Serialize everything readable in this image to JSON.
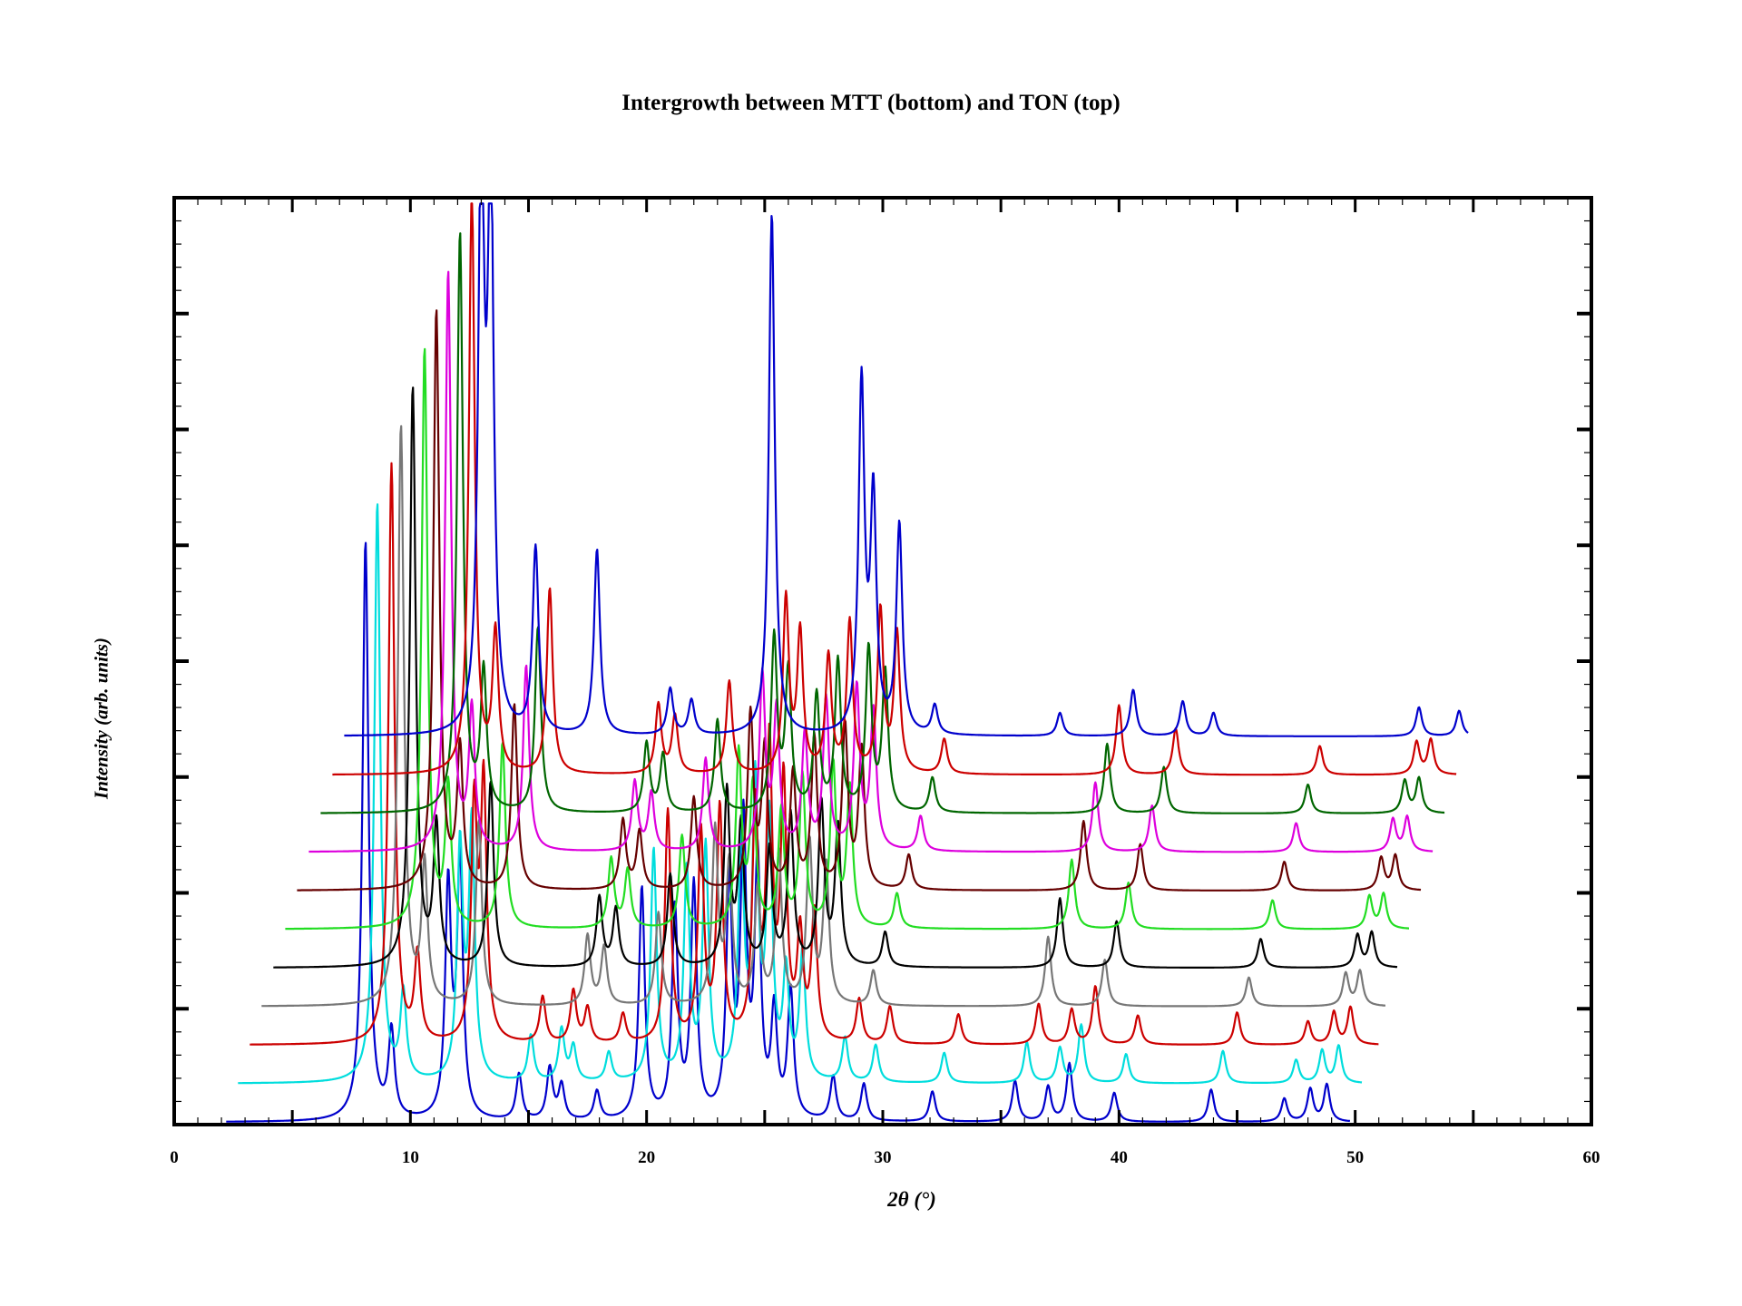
{
  "chart_data": {
    "type": "line",
    "title": "Intergrowth between MTT (bottom) and TON (top)",
    "xlabel": "2θ (°)",
    "ylabel": "Intensity (arb. units)",
    "xlim": [
      0,
      60
    ],
    "ylim": [
      0,
      8
    ],
    "x_ticks": [
      0,
      10,
      20,
      30,
      40,
      50,
      60
    ],
    "x_tick_labels": [
      "0",
      "10",
      "20",
      "30",
      "40",
      "50",
      "60"
    ],
    "y_tick_labels_shown": false,
    "grid": false,
    "legend": null,
    "offset_per_series": {
      "x": 0.5,
      "y": 0.333
    },
    "series": [
      {
        "color": "#0000cc",
        "x_range": [
          2.2,
          49.8
        ],
        "peaks": [
          [
            8.1,
            5.0
          ],
          [
            9.2,
            0.75
          ],
          [
            11.6,
            2.0
          ],
          [
            12.1,
            2.2
          ],
          [
            14.6,
            0.4
          ],
          [
            15.9,
            0.45
          ],
          [
            16.4,
            0.3
          ],
          [
            17.9,
            0.25
          ],
          [
            19.8,
            2.0
          ],
          [
            21.2,
            1.8
          ],
          [
            22.0,
            2.0
          ],
          [
            23.5,
            2.0
          ],
          [
            24.1,
            2.5
          ],
          [
            24.7,
            2.2
          ],
          [
            25.4,
            0.9
          ],
          [
            26.1,
            1.1
          ],
          [
            27.9,
            0.38
          ],
          [
            29.2,
            0.32
          ],
          [
            32.1,
            0.26
          ],
          [
            35.6,
            0.35
          ],
          [
            37.0,
            0.3
          ],
          [
            37.9,
            0.5
          ],
          [
            39.8,
            0.25
          ],
          [
            43.9,
            0.28
          ],
          [
            47.0,
            0.2
          ],
          [
            48.1,
            0.28
          ],
          [
            48.8,
            0.32
          ]
        ]
      },
      {
        "color": "#00dddd",
        "x_range": [
          2.7,
          50.3
        ],
        "peaks": [
          [
            8.6,
            5.0
          ],
          [
            9.7,
            0.75
          ],
          [
            12.1,
            2.0
          ],
          [
            12.6,
            2.2
          ],
          [
            15.1,
            0.4
          ],
          [
            16.4,
            0.45
          ],
          [
            16.9,
            0.3
          ],
          [
            18.4,
            0.25
          ],
          [
            20.3,
            2.0
          ],
          [
            21.7,
            1.8
          ],
          [
            22.5,
            2.0
          ],
          [
            24.0,
            2.0
          ],
          [
            24.6,
            2.5
          ],
          [
            25.2,
            2.2
          ],
          [
            25.9,
            0.9
          ],
          [
            26.6,
            1.1
          ],
          [
            28.4,
            0.38
          ],
          [
            29.7,
            0.32
          ],
          [
            32.6,
            0.26
          ],
          [
            36.1,
            0.35
          ],
          [
            37.5,
            0.3
          ],
          [
            38.4,
            0.5
          ],
          [
            40.3,
            0.25
          ],
          [
            44.4,
            0.28
          ],
          [
            47.5,
            0.2
          ],
          [
            48.6,
            0.28
          ],
          [
            49.3,
            0.32
          ]
        ]
      },
      {
        "color": "#cc0000",
        "x_range": [
          3.2,
          51.0
        ],
        "peaks": [
          [
            9.2,
            5.0
          ],
          [
            10.3,
            0.75
          ],
          [
            12.7,
            2.0
          ],
          [
            13.1,
            2.2
          ],
          [
            15.6,
            0.4
          ],
          [
            16.9,
            0.45
          ],
          [
            17.5,
            0.3
          ],
          [
            19.0,
            0.25
          ],
          [
            20.9,
            2.0
          ],
          [
            22.3,
            1.8
          ],
          [
            23.1,
            2.0
          ],
          [
            24.6,
            2.0
          ],
          [
            25.2,
            2.5
          ],
          [
            25.8,
            2.2
          ],
          [
            26.5,
            0.9
          ],
          [
            27.1,
            1.1
          ],
          [
            29.0,
            0.38
          ],
          [
            30.3,
            0.32
          ],
          [
            33.2,
            0.26
          ],
          [
            36.6,
            0.35
          ],
          [
            38.0,
            0.3
          ],
          [
            39.0,
            0.5
          ],
          [
            40.8,
            0.25
          ],
          [
            45.0,
            0.28
          ],
          [
            48.0,
            0.2
          ],
          [
            49.1,
            0.28
          ],
          [
            49.8,
            0.32
          ]
        ]
      },
      {
        "color": "#777777",
        "x_range": [
          3.7,
          51.3
        ],
        "peaks": [
          [
            9.6,
            5.0
          ],
          [
            10.6,
            1.2
          ],
          [
            12.9,
            1.6
          ],
          [
            17.5,
            0.6
          ],
          [
            18.2,
            0.5
          ],
          [
            20.5,
            0.8
          ],
          [
            22.9,
            1.5
          ],
          [
            23.5,
            1.2
          ],
          [
            24.7,
            1.0
          ],
          [
            25.6,
            1.3
          ],
          [
            26.9,
            1.4
          ],
          [
            27.6,
            1.2
          ],
          [
            29.6,
            0.3
          ],
          [
            37.0,
            0.6
          ],
          [
            39.4,
            0.4
          ],
          [
            45.5,
            0.25
          ],
          [
            49.6,
            0.28
          ],
          [
            50.2,
            0.3
          ]
        ]
      },
      {
        "color": "#000000",
        "x_range": [
          4.2,
          51.8
        ],
        "peaks": [
          [
            10.1,
            5.0
          ],
          [
            11.1,
            1.2
          ],
          [
            13.4,
            1.6
          ],
          [
            18.0,
            0.6
          ],
          [
            18.7,
            0.5
          ],
          [
            21.0,
            0.8
          ],
          [
            23.4,
            1.5
          ],
          [
            24.0,
            1.2
          ],
          [
            25.2,
            1.0
          ],
          [
            26.1,
            1.3
          ],
          [
            27.4,
            1.4
          ],
          [
            28.1,
            1.2
          ],
          [
            30.1,
            0.3
          ],
          [
            37.5,
            0.6
          ],
          [
            39.9,
            0.4
          ],
          [
            46.0,
            0.25
          ],
          [
            50.1,
            0.28
          ],
          [
            50.7,
            0.3
          ]
        ]
      },
      {
        "color": "#22dd22",
        "x_range": [
          4.7,
          52.3
        ],
        "peaks": [
          [
            10.6,
            5.0
          ],
          [
            11.6,
            1.2
          ],
          [
            13.9,
            1.6
          ],
          [
            18.5,
            0.6
          ],
          [
            19.2,
            0.5
          ],
          [
            21.5,
            0.8
          ],
          [
            23.9,
            1.5
          ],
          [
            24.5,
            1.2
          ],
          [
            25.7,
            1.0
          ],
          [
            26.6,
            1.3
          ],
          [
            27.9,
            1.4
          ],
          [
            28.6,
            1.2
          ],
          [
            30.6,
            0.3
          ],
          [
            38.0,
            0.6
          ],
          [
            40.4,
            0.4
          ],
          [
            46.5,
            0.25
          ],
          [
            50.6,
            0.28
          ],
          [
            51.2,
            0.3
          ]
        ]
      },
      {
        "color": "#660000",
        "x_range": [
          5.2,
          52.8
        ],
        "peaks": [
          [
            11.1,
            5.0
          ],
          [
            12.1,
            1.2
          ],
          [
            14.4,
            1.6
          ],
          [
            19.0,
            0.6
          ],
          [
            19.7,
            0.5
          ],
          [
            22.0,
            0.8
          ],
          [
            24.4,
            1.5
          ],
          [
            25.0,
            1.2
          ],
          [
            26.2,
            1.0
          ],
          [
            27.1,
            1.3
          ],
          [
            28.4,
            1.4
          ],
          [
            29.1,
            1.2
          ],
          [
            31.1,
            0.3
          ],
          [
            38.5,
            0.6
          ],
          [
            40.9,
            0.4
          ],
          [
            47.0,
            0.25
          ],
          [
            51.1,
            0.28
          ],
          [
            51.7,
            0.3
          ]
        ]
      },
      {
        "color": "#dd00dd",
        "x_range": [
          5.7,
          53.3
        ],
        "peaks": [
          [
            11.6,
            5.0
          ],
          [
            12.6,
            1.2
          ],
          [
            14.9,
            1.6
          ],
          [
            19.5,
            0.6
          ],
          [
            20.2,
            0.5
          ],
          [
            22.5,
            0.8
          ],
          [
            24.9,
            1.5
          ],
          [
            25.5,
            1.2
          ],
          [
            26.7,
            1.0
          ],
          [
            27.6,
            1.3
          ],
          [
            28.9,
            1.4
          ],
          [
            29.6,
            1.2
          ],
          [
            31.6,
            0.3
          ],
          [
            39.0,
            0.6
          ],
          [
            41.4,
            0.4
          ],
          [
            47.5,
            0.25
          ],
          [
            51.6,
            0.28
          ],
          [
            52.2,
            0.3
          ]
        ]
      },
      {
        "color": "#006600",
        "x_range": [
          6.2,
          53.8
        ],
        "peaks": [
          [
            12.1,
            5.0
          ],
          [
            13.1,
            1.2
          ],
          [
            15.4,
            1.6
          ],
          [
            20.0,
            0.6
          ],
          [
            20.7,
            0.5
          ],
          [
            23.0,
            0.8
          ],
          [
            25.4,
            1.5
          ],
          [
            26.0,
            1.2
          ],
          [
            27.2,
            1.0
          ],
          [
            28.1,
            1.3
          ],
          [
            29.4,
            1.4
          ],
          [
            30.1,
            1.2
          ],
          [
            32.1,
            0.3
          ],
          [
            39.5,
            0.6
          ],
          [
            41.9,
            0.4
          ],
          [
            48.0,
            0.25
          ],
          [
            52.1,
            0.28
          ],
          [
            52.7,
            0.3
          ]
        ]
      },
      {
        "color": "#cc0000",
        "x_range": [
          6.7,
          54.3
        ],
        "peaks": [
          [
            12.6,
            5.0
          ],
          [
            13.6,
            1.2
          ],
          [
            15.9,
            1.6
          ],
          [
            20.5,
            0.6
          ],
          [
            21.2,
            0.5
          ],
          [
            23.5,
            0.8
          ],
          [
            25.9,
            1.5
          ],
          [
            26.5,
            1.2
          ],
          [
            27.7,
            1.0
          ],
          [
            28.6,
            1.3
          ],
          [
            29.9,
            1.4
          ],
          [
            30.6,
            1.2
          ],
          [
            32.6,
            0.3
          ],
          [
            40.0,
            0.6
          ],
          [
            42.4,
            0.4
          ],
          [
            48.5,
            0.25
          ],
          [
            52.6,
            0.28
          ],
          [
            53.2,
            0.3
          ]
        ]
      },
      {
        "color": "#0000cc",
        "x_range": [
          7.2,
          54.8
        ],
        "peaks": [
          [
            13.0,
            5.0
          ],
          [
            13.4,
            4.8
          ],
          [
            15.3,
            1.6
          ],
          [
            17.9,
            1.6
          ],
          [
            21.0,
            0.4
          ],
          [
            21.9,
            0.3
          ],
          [
            25.3,
            4.5
          ],
          [
            29.1,
            3.0
          ],
          [
            29.6,
            2.0
          ],
          [
            30.7,
            1.8
          ],
          [
            32.2,
            0.25
          ],
          [
            37.5,
            0.2
          ],
          [
            40.6,
            0.4
          ],
          [
            42.7,
            0.3
          ],
          [
            44.0,
            0.2
          ],
          [
            52.7,
            0.25
          ],
          [
            54.4,
            0.22
          ]
        ]
      }
    ]
  }
}
